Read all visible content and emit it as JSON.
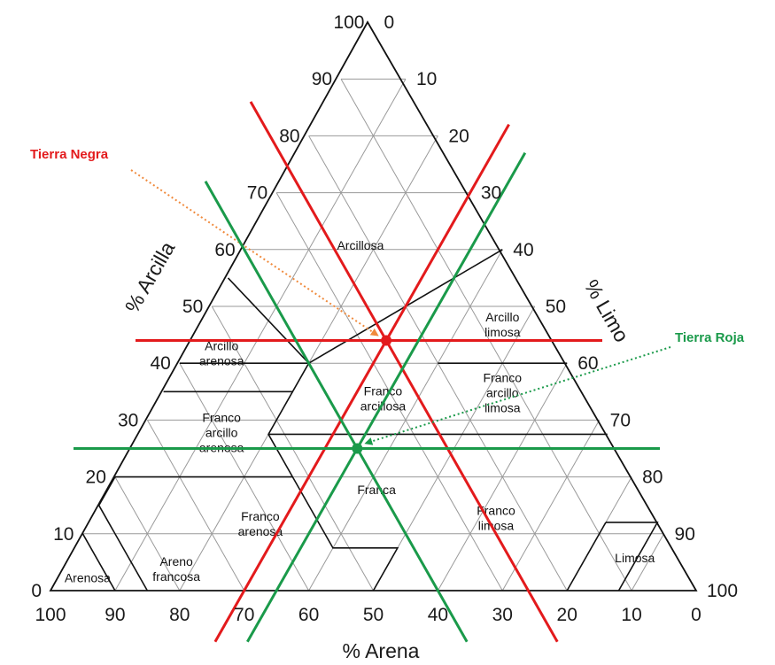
{
  "diagram": {
    "axes": {
      "clay": {
        "title": "% Arcilla",
        "ticks": [
          "0",
          "10",
          "20",
          "30",
          "40",
          "50",
          "60",
          "70",
          "80",
          "90",
          "100"
        ]
      },
      "silt": {
        "title": "% Limo",
        "ticks": [
          "0",
          "10",
          "20",
          "30",
          "40",
          "50",
          "60",
          "70",
          "80",
          "90",
          "100"
        ]
      },
      "sand": {
        "title": "% Arena",
        "ticks": [
          "100",
          "90",
          "80",
          "70",
          "60",
          "50",
          "40",
          "30",
          "20",
          "10",
          "0"
        ]
      }
    },
    "regions": [
      {
        "id": "arcillosa",
        "lines": [
          "Arcillosa"
        ]
      },
      {
        "id": "arcillo-limosa",
        "lines": [
          "Arcillo",
          "limosa"
        ]
      },
      {
        "id": "arcillo-arenosa",
        "lines": [
          "Arcillo",
          "arenosa"
        ]
      },
      {
        "id": "franco-arcillosa",
        "lines": [
          "Franco",
          "arcillosa"
        ]
      },
      {
        "id": "franco-arcillo-limosa",
        "lines": [
          "Franco",
          "arcillo",
          "limosa"
        ]
      },
      {
        "id": "franco-arcillo-arenosa",
        "lines": [
          "Franco",
          "arcillo",
          "arenosa"
        ]
      },
      {
        "id": "franca",
        "lines": [
          "Franca"
        ]
      },
      {
        "id": "franco-arenosa",
        "lines": [
          "Franco",
          "arenosa"
        ]
      },
      {
        "id": "franco-limosa",
        "lines": [
          "Franco",
          "limosa"
        ]
      },
      {
        "id": "limosa",
        "lines": [
          "Limosa"
        ]
      },
      {
        "id": "areno-francosa",
        "lines": [
          "Areno",
          "francosa"
        ]
      },
      {
        "id": "arenosa",
        "lines": [
          "Arenosa"
        ]
      }
    ],
    "samples": [
      {
        "id": "tierra-negra",
        "label": "Tierra Negra",
        "color": "#e31a1c",
        "arrow_color": "#f08a3c",
        "clay": 44,
        "silt": 30,
        "sand": 26
      },
      {
        "id": "tierra-roja",
        "label": "Tierra Roja",
        "color": "#1a9a4a",
        "arrow_color": "#1a9a4a",
        "clay": 25,
        "silt": 35,
        "sand": 40
      }
    ],
    "colors": {
      "outline": "#111111",
      "grid": "#9a9a9a"
    }
  }
}
